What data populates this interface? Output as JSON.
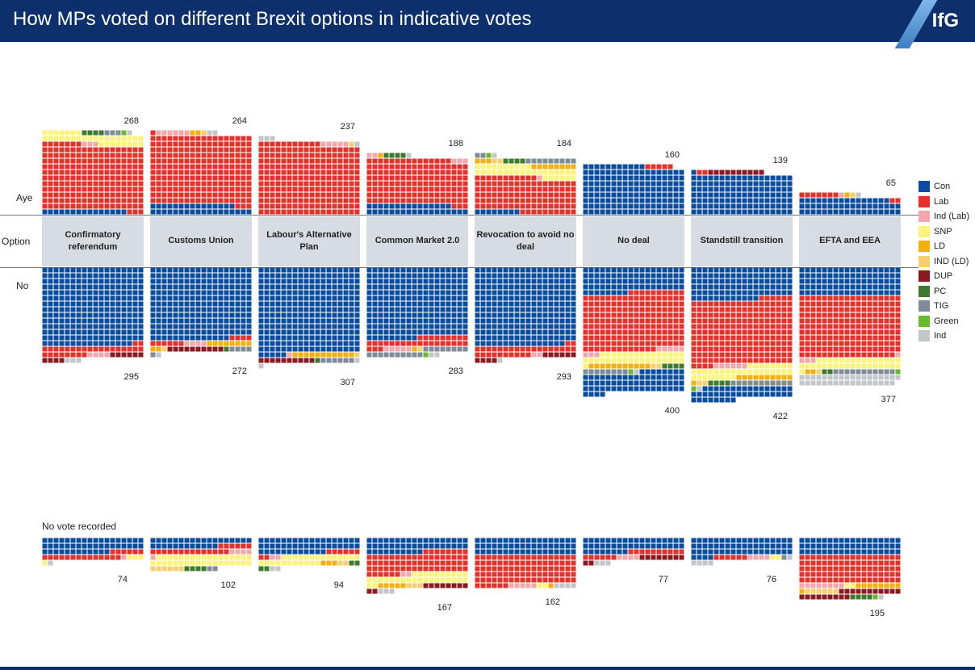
{
  "header": {
    "title": "How MPs voted on different Brexit options in indicative votes",
    "logo": "IfG"
  },
  "row_labels": {
    "aye": "Aye",
    "option": "Option",
    "no": "No"
  },
  "no_vote_label": "No vote recorded",
  "colors": {
    "Con": "#0a4d9c",
    "Lab": "#e4312b",
    "Ind (Lab)": "#f2a7ad",
    "SNP": "#fbf37a",
    "LD": "#f5b00f",
    "IND (LD)": "#f7cf6c",
    "DUP": "#8a1a22",
    "PC": "#3e7a2e",
    "TIG": "#7e8c99",
    "Green": "#69b92e",
    "Ind": "#c3c5c8"
  },
  "chart_data": {
    "type": "waffle",
    "title": "How MPs voted on different Brexit options in indicative votes",
    "parties": [
      "Con",
      "Lab",
      "Ind (Lab)",
      "SNP",
      "LD",
      "IND (LD)",
      "DUP",
      "PC",
      "TIG",
      "Green",
      "Ind"
    ],
    "options": [
      {
        "name": "Confirmatory referendum",
        "aye": {
          "total": 268,
          "Con": 15,
          "Lab": 208,
          "Ind (Lab)": 3,
          "SNP": 33,
          "LD": 0,
          "IND (LD)": 0,
          "DUP": 0,
          "PC": 4,
          "TIG": 3,
          "Green": 1,
          "Ind": 1
        },
        "no": {
          "total": 295,
          "Con": 250,
          "Lab": 28,
          "Ind (Lab)": 4,
          "SNP": 0,
          "LD": 0,
          "IND (LD)": 0,
          "DUP": 10,
          "PC": 0,
          "TIG": 0,
          "Green": 0,
          "Ind": 3
        },
        "nvr": {
          "total": 74,
          "Con": 48,
          "Lab": 20,
          "Ind (Lab)": 1,
          "SNP": 4,
          "Ind": 1
        }
      },
      {
        "name": "Customs Union",
        "aye": {
          "total": 264,
          "Con": 33,
          "Lab": 220,
          "Ind (Lab)": 6,
          "SNP": 0,
          "LD": 2,
          "IND (LD)": 1,
          "Ind": 2
        },
        "no": {
          "total": 272,
          "Con": 230,
          "Lab": 10,
          "Ind (Lab)": 4,
          "SNP": 0,
          "LD": 10,
          "IND (LD)": 1,
          "DUP": 10,
          "PC": 1,
          "TIG": 5,
          "Ind": 1
        },
        "nvr": {
          "total": 102,
          "Con": 30,
          "Lab": 20,
          "Ind (Lab)": 5,
          "SNP": 35,
          "LD": 0,
          "IND (LD)": 6,
          "PC": 4,
          "TIG": 2
        }
      },
      {
        "name": "Labour's Alternative Plan",
        "aye": {
          "total": 237,
          "Con": 0,
          "Lab": 227,
          "Ind (Lab)": 5,
          "IND (LD)": 1,
          "Ind": 4
        },
        "no": {
          "total": 307,
          "Con": 275,
          "Lab": 0,
          "Ind (Lab)": 1,
          "LD": 11,
          "IND (LD)": 1,
          "DUP": 10,
          "PC": 1,
          "TIG": 6,
          "Ind": 2
        },
        "nvr": {
          "total": 94,
          "Con": 48,
          "Lab": 8,
          "Ind (Lab)": 2,
          "SNP": 25,
          "LD": 3,
          "IND (LD)": 2,
          "PC": 4,
          "Ind": 2
        }
      },
      {
        "name": "Common Market 2.0",
        "aye": {
          "total": 188,
          "Con": 33,
          "Lab": 144,
          "Ind (Lab)": 5,
          "SNP": 0,
          "PC": 4,
          "LD": 1,
          "Ind": 1
        },
        "no": {
          "total": 283,
          "Con": 225,
          "Lab": 30,
          "Ind (Lab)": 5,
          "SNP": 0,
          "LD": 1,
          "IND (LD)": 1,
          "DUP": 0,
          "TIG": 18,
          "Green": 1,
          "Ind": 2
        },
        "nvr": {
          "total": 167,
          "Con": 46,
          "Lab": 68,
          "Ind (Lab)": 2,
          "SNP": 30,
          "LD": 5,
          "IND (LD)": 3,
          "DUP": 10,
          "Ind": 3
        }
      },
      {
        "name": "Revocation to avoid no deal",
        "aye": {
          "total": 184,
          "Con": 8,
          "Lab": 111,
          "Ind (Lab)": 1,
          "SNP": 34,
          "LD": 11,
          "IND (LD)": 2,
          "PC": 4,
          "TIG": 11,
          "Green": 1,
          "Ind": 1
        },
        "no": {
          "total": 293,
          "Con": 250,
          "Lab": 30,
          "Ind (Lab)": 2,
          "DUP": 10,
          "Ind": 1
        },
        "nvr": {
          "total": 162,
          "Con": 54,
          "Lab": 96,
          "Ind (Lab)": 5,
          "SNP": 2,
          "LD": 1,
          "Ind": 4
        }
      },
      {
        "name": "No deal",
        "aye": {
          "total": 160,
          "Con": 155,
          "Lab": 5,
          "Ind (Lab)": 0
        },
        "no": {
          "total": 400,
          "Con": 80,
          "Lab": 185,
          "Ind (Lab)": 8,
          "SNP": 34,
          "LD": 11,
          "IND (LD)": 2,
          "DUP": 0,
          "PC": 4,
          "TIG": 8,
          "Green": 1,
          "Ind": 1
        },
        "nvr": {
          "total": 77,
          "Con": 44,
          "Lab": 16,
          "Ind (Lab)": 4,
          "DUP": 10,
          "Ind": 3
        }
      },
      {
        "name": "Standstill transition",
        "aye": {
          "total": 139,
          "Con": 127,
          "DUP": 10,
          "Lab": 2
        },
        "no": {
          "total": 422,
          "Con": 102,
          "Lab": 208,
          "Ind (Lab)": 6,
          "SNP": 34,
          "LD": 11,
          "IND (LD)": 2,
          "PC": 4,
          "TIG": 11,
          "Green": 1,
          "Ind": 1
        },
        "nvr": {
          "total": 76,
          "Con": 58,
          "Lab": 6,
          "Ind (Lab)": 4,
          "SNP": 2,
          "TIG": 1,
          "Ind": 5
        }
      },
      {
        "name": "EFTA and EEA",
        "aye": {
          "total": 65,
          "Con": 52,
          "Lab": 9,
          "Ind (Lab)": 1,
          "LD": 1,
          "IND (LD)": 1,
          "Ind": 1
        },
        "no": {
          "total": 377,
          "Con": 90,
          "Lab": 197,
          "Ind (Lab)": 4,
          "SNP": 34,
          "LD": 2,
          "IND (LD)": 1,
          "PC": 2,
          "TIG": 11,
          "Green": 1,
          "Ind": 35
        },
        "nvr": {
          "total": 195,
          "Con": 54,
          "Lab": 90,
          "Ind (Lab)": 8,
          "SNP": 2,
          "LD": 9,
          "IND (LD)": 6,
          "DUP": 20,
          "PC": 4,
          "Green": 1,
          "Ind": 1
        }
      }
    ]
  }
}
